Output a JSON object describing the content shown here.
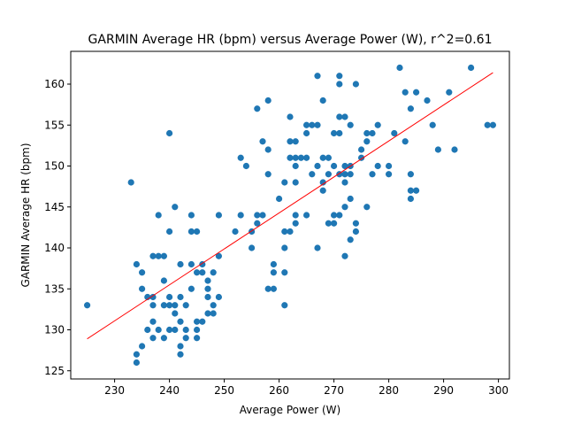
{
  "chart_data": {
    "type": "scatter",
    "title": "GARMIN Average HR (bpm) versus Average Power (W), r^2=0.61",
    "xlabel": "Average Power (W)",
    "ylabel": "GARMIN Average HR (bpm)",
    "xlim": [
      222,
      302
    ],
    "ylim": [
      124,
      164
    ],
    "xticks": [
      230,
      240,
      250,
      260,
      270,
      280,
      290,
      300
    ],
    "yticks": [
      125,
      130,
      135,
      140,
      145,
      150,
      155,
      160
    ],
    "grid": false,
    "point_color": "#1f77b4",
    "fit_line": {
      "color": "#ff0000",
      "x": [
        225,
        299
      ],
      "y": [
        128.9,
        161.4
      ]
    },
    "points": [
      [
        225,
        133
      ],
      [
        233,
        148
      ],
      [
        234,
        138
      ],
      [
        234,
        127
      ],
      [
        234,
        126
      ],
      [
        235,
        137
      ],
      [
        235,
        135
      ],
      [
        235,
        128
      ],
      [
        236,
        134
      ],
      [
        236,
        130
      ],
      [
        237,
        134
      ],
      [
        237,
        139
      ],
      [
        237,
        133
      ],
      [
        237,
        131
      ],
      [
        237,
        129
      ],
      [
        238,
        144
      ],
      [
        238,
        139
      ],
      [
        238,
        130
      ],
      [
        239,
        139
      ],
      [
        239,
        136
      ],
      [
        239,
        133
      ],
      [
        239,
        129
      ],
      [
        240,
        154
      ],
      [
        240,
        142
      ],
      [
        240,
        134
      ],
      [
        240,
        133
      ],
      [
        240,
        130
      ],
      [
        241,
        145
      ],
      [
        241,
        133
      ],
      [
        241,
        132
      ],
      [
        241,
        130
      ],
      [
        242,
        138
      ],
      [
        242,
        134
      ],
      [
        242,
        131
      ],
      [
        242,
        128
      ],
      [
        242,
        127
      ],
      [
        243,
        133
      ],
      [
        243,
        130
      ],
      [
        243,
        129
      ],
      [
        244,
        144
      ],
      [
        244,
        142
      ],
      [
        244,
        138
      ],
      [
        244,
        135
      ],
      [
        245,
        142
      ],
      [
        245,
        137
      ],
      [
        245,
        131
      ],
      [
        245,
        130
      ],
      [
        245,
        129
      ],
      [
        246,
        138
      ],
      [
        246,
        137
      ],
      [
        246,
        131
      ],
      [
        247,
        136
      ],
      [
        247,
        135
      ],
      [
        247,
        134
      ],
      [
        247,
        132
      ],
      [
        248,
        137
      ],
      [
        248,
        133
      ],
      [
        248,
        132
      ],
      [
        249,
        144
      ],
      [
        249,
        139
      ],
      [
        249,
        134
      ],
      [
        252,
        142
      ],
      [
        253,
        151
      ],
      [
        253,
        144
      ],
      [
        254,
        150
      ],
      [
        255,
        142
      ],
      [
        255,
        140
      ],
      [
        256,
        157
      ],
      [
        256,
        144
      ],
      [
        256,
        143
      ],
      [
        257,
        153
      ],
      [
        257,
        144
      ],
      [
        258,
        158
      ],
      [
        258,
        152
      ],
      [
        258,
        149
      ],
      [
        258,
        135
      ],
      [
        259,
        138
      ],
      [
        259,
        137
      ],
      [
        259,
        135
      ],
      [
        260,
        146
      ],
      [
        261,
        148
      ],
      [
        261,
        142
      ],
      [
        261,
        140
      ],
      [
        261,
        137
      ],
      [
        261,
        133
      ],
      [
        262,
        156
      ],
      [
        262,
        153
      ],
      [
        262,
        151
      ],
      [
        262,
        142
      ],
      [
        263,
        153
      ],
      [
        263,
        151
      ],
      [
        263,
        150
      ],
      [
        263,
        148
      ],
      [
        263,
        144
      ],
      [
        263,
        143
      ],
      [
        264,
        151
      ],
      [
        265,
        155
      ],
      [
        265,
        154
      ],
      [
        265,
        151
      ],
      [
        265,
        144
      ],
      [
        266,
        155
      ],
      [
        266,
        149
      ],
      [
        267,
        161
      ],
      [
        267,
        155
      ],
      [
        267,
        150
      ],
      [
        267,
        140
      ],
      [
        268,
        158
      ],
      [
        268,
        151
      ],
      [
        268,
        148
      ],
      [
        268,
        147
      ],
      [
        269,
        151
      ],
      [
        269,
        143
      ],
      [
        269,
        149
      ],
      [
        270,
        154
      ],
      [
        270,
        150
      ],
      [
        270,
        144
      ],
      [
        270,
        143
      ],
      [
        271,
        161
      ],
      [
        271,
        160
      ],
      [
        271,
        156
      ],
      [
        271,
        154
      ],
      [
        271,
        149
      ],
      [
        271,
        144
      ],
      [
        272,
        156
      ],
      [
        272,
        149
      ],
      [
        272,
        148
      ],
      [
        272,
        139
      ],
      [
        272,
        145
      ],
      [
        272,
        150
      ],
      [
        273,
        155
      ],
      [
        273,
        150
      ],
      [
        273,
        149
      ],
      [
        273,
        146
      ],
      [
        273,
        141
      ],
      [
        274,
        160
      ],
      [
        274,
        143
      ],
      [
        274,
        142
      ],
      [
        275,
        151
      ],
      [
        275,
        152
      ],
      [
        276,
        154
      ],
      [
        276,
        153
      ],
      [
        276,
        145
      ],
      [
        277,
        154
      ],
      [
        277,
        149
      ],
      [
        278,
        155
      ],
      [
        278,
        150
      ],
      [
        280,
        150
      ],
      [
        280,
        149
      ],
      [
        281,
        154
      ],
      [
        282,
        162
      ],
      [
        283,
        159
      ],
      [
        283,
        153
      ],
      [
        284,
        157
      ],
      [
        284,
        149
      ],
      [
        284,
        147
      ],
      [
        284,
        146
      ],
      [
        285,
        159
      ],
      [
        285,
        147
      ],
      [
        287,
        158
      ],
      [
        288,
        155
      ],
      [
        289,
        152
      ],
      [
        291,
        159
      ],
      [
        292,
        152
      ],
      [
        295,
        162
      ],
      [
        298,
        155
      ],
      [
        299,
        155
      ]
    ]
  }
}
